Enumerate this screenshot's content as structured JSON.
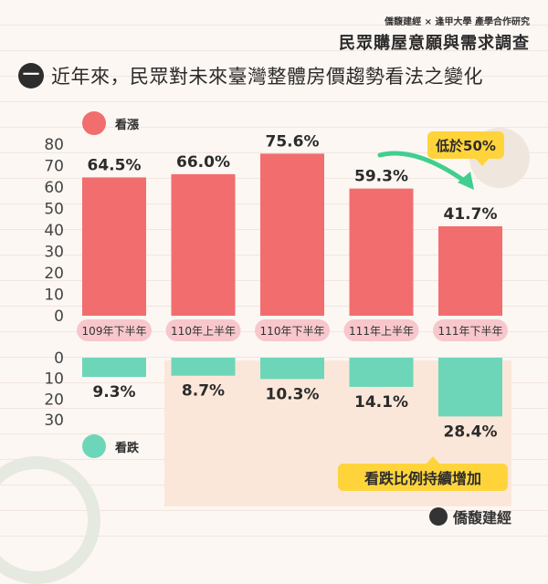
{
  "header": {
    "small": "僑馥建經 × 逢甲大學 產學合作研究",
    "title": "民眾購屋意願與需求調查"
  },
  "section": {
    "badge": "一",
    "title": "近年來，民眾對未來臺灣整體房價趨勢看法之變化"
  },
  "callouts": {
    "below_half": "低於50%",
    "drop_rising": "看跌比例持續增加"
  },
  "brand": {
    "name": "僑馥建經"
  },
  "chart_data": {
    "type": "bar",
    "categories": [
      "109年下半年",
      "110年上半年",
      "110年下半年",
      "111年上半年",
      "111年下半年"
    ],
    "series": [
      {
        "name": "看漲",
        "color": "#f26d6d",
        "values": [
          64.5,
          66.0,
          75.6,
          59.3,
          41.7
        ],
        "labels": [
          "64.5%",
          "66.0%",
          "75.6%",
          "59.3%",
          "41.7%"
        ]
      },
      {
        "name": "看跌",
        "color": "#6dd6b8",
        "values": [
          9.3,
          8.7,
          10.3,
          14.1,
          28.4
        ],
        "labels": [
          "9.3%",
          "8.7%",
          "10.3%",
          "14.1%",
          "28.4%"
        ]
      }
    ],
    "y_up_ticks": [
      "80",
      "70",
      "60",
      "50",
      "40",
      "30",
      "20",
      "10",
      "0"
    ],
    "y_up_range": [
      0,
      80
    ],
    "y_down_ticks": [
      "0",
      "10",
      "20",
      "30"
    ],
    "y_down_range": [
      0,
      30
    ],
    "category_pill_color": "#f7c7cc",
    "arrow_color": "#3fcf8e",
    "legend_placement": "top-left / bottom-left"
  }
}
